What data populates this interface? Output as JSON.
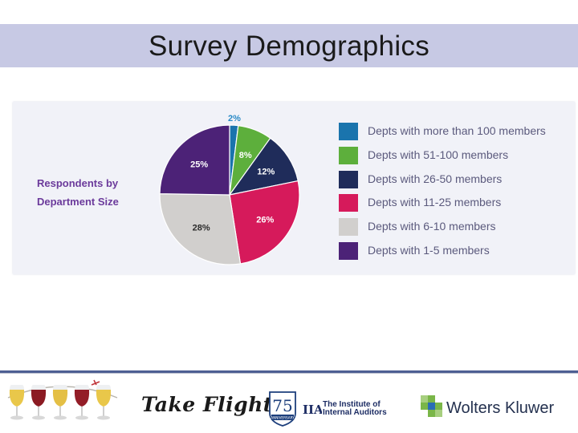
{
  "slide": {
    "title": "Survey Demographics"
  },
  "chart_data": {
    "type": "pie",
    "title": "Respondents by Department Size",
    "title_lines": [
      "Respondents by",
      "Department Size"
    ],
    "unit": "%",
    "slices": [
      {
        "label": "Depts with more than 100 members",
        "value": 2,
        "display": "2%",
        "color": "#1a74ad"
      },
      {
        "label": "Depts with 51-100 members",
        "value": 8,
        "display": "8%",
        "color": "#5daf3c"
      },
      {
        "label": "Depts with 26-50 members",
        "value": 12,
        "display": "12%",
        "color": "#1f2c5a"
      },
      {
        "label": "Depts with 11-25 members",
        "value": 26,
        "display": "26%",
        "color": "#d61a5b"
      },
      {
        "label": "Depts with 6-10 members",
        "value": 28,
        "display": "28%",
        "color": "#d1cfcd"
      },
      {
        "label": "Depts with 1-5 members",
        "value": 25,
        "display": "25%",
        "color": "#4c2277"
      }
    ],
    "label_colors": {
      "Depts with more than 100 members": "#2a8ac6",
      "Depts with 51-100 members": "#ffffff",
      "Depts with 26-50 members": "#ffffff",
      "Depts with 11-25 members": "#ffffff",
      "Depts with 6-10 members": "#2b2b2b",
      "Depts with 1-5 members": "#ffffff"
    }
  },
  "footer": {
    "take_flight": "Take Flight",
    "badge_number": "75",
    "badge_caption": "ANNIVERSARY",
    "iia_mark": "IIA",
    "iia_name_line1": "The Institute of",
    "iia_name_line2": "Internal Auditors",
    "wolters_kluwer": "Wolters Kluwer",
    "colors": {
      "rule": "#4e5f93",
      "wk_green": "#7ab648",
      "wk_blue": "#2a6db5"
    }
  }
}
